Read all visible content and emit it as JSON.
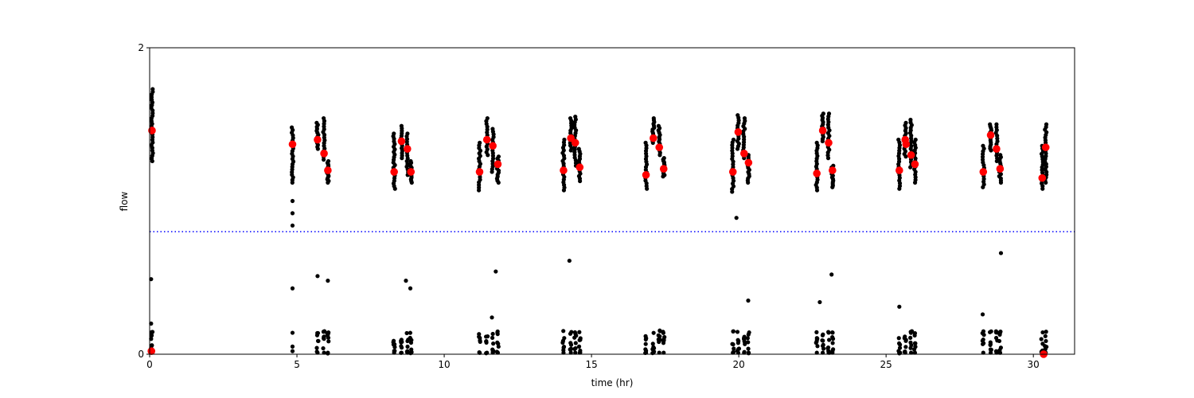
{
  "chart_data": {
    "type": "scatter",
    "xlabel": "time (hr)",
    "ylabel": "flow",
    "xlim": [
      0,
      31.4
    ],
    "ylim": [
      0,
      2
    ],
    "xticks": [
      0,
      5,
      10,
      15,
      20,
      25,
      30
    ],
    "yticks": [
      0,
      2
    ],
    "grid": false,
    "threshold_line": {
      "y": 0.8,
      "style": "dotted",
      "color": "#0000ff"
    },
    "colors": {
      "raw": "#000000",
      "mean": "#ff0000",
      "threshold": "#0000ff"
    },
    "series": [
      {
        "role": "raw",
        "marker": "dot",
        "clusters": [
          {
            "x": 0.08,
            "ymin": 1.26,
            "ymax": 1.73
          },
          {
            "x": 4.85,
            "ymin": 1.12,
            "ymax": 1.48
          },
          {
            "x": 5.7,
            "ymin": 1.34,
            "ymax": 1.51
          },
          {
            "x": 5.92,
            "ymin": 1.27,
            "ymax": 1.54
          },
          {
            "x": 6.05,
            "ymin": 1.12,
            "ymax": 1.26
          },
          {
            "x": 8.3,
            "ymin": 1.08,
            "ymax": 1.44
          },
          {
            "x": 8.55,
            "ymin": 1.28,
            "ymax": 1.49
          },
          {
            "x": 8.75,
            "ymin": 1.17,
            "ymax": 1.44
          },
          {
            "x": 8.87,
            "ymin": 1.12,
            "ymax": 1.26
          },
          {
            "x": 11.2,
            "ymin": 1.07,
            "ymax": 1.38
          },
          {
            "x": 11.45,
            "ymin": 1.3,
            "ymax": 1.54
          },
          {
            "x": 11.65,
            "ymin": 1.19,
            "ymax": 1.47
          },
          {
            "x": 11.82,
            "ymin": 1.12,
            "ymax": 1.29
          },
          {
            "x": 14.05,
            "ymin": 1.07,
            "ymax": 1.4
          },
          {
            "x": 14.3,
            "ymin": 1.33,
            "ymax": 1.54
          },
          {
            "x": 14.45,
            "ymin": 1.23,
            "ymax": 1.55
          },
          {
            "x": 14.6,
            "ymin": 1.13,
            "ymax": 1.34
          },
          {
            "x": 16.85,
            "ymin": 1.08,
            "ymax": 1.38
          },
          {
            "x": 17.1,
            "ymin": 1.38,
            "ymax": 1.54
          },
          {
            "x": 17.3,
            "ymin": 1.3,
            "ymax": 1.49
          },
          {
            "x": 17.45,
            "ymin": 1.16,
            "ymax": 1.28
          },
          {
            "x": 19.8,
            "ymin": 1.06,
            "ymax": 1.4
          },
          {
            "x": 19.98,
            "ymin": 1.34,
            "ymax": 1.56
          },
          {
            "x": 20.18,
            "ymin": 1.28,
            "ymax": 1.54
          },
          {
            "x": 20.33,
            "ymin": 1.12,
            "ymax": 1.3
          },
          {
            "x": 22.65,
            "ymin": 1.07,
            "ymax": 1.38
          },
          {
            "x": 22.85,
            "ymin": 1.39,
            "ymax": 1.57
          },
          {
            "x": 23.05,
            "ymin": 1.28,
            "ymax": 1.57
          },
          {
            "x": 23.18,
            "ymin": 1.09,
            "ymax": 1.23
          },
          {
            "x": 25.45,
            "ymin": 1.08,
            "ymax": 1.4
          },
          {
            "x": 25.65,
            "ymin": 1.29,
            "ymax": 1.51
          },
          {
            "x": 25.85,
            "ymin": 1.22,
            "ymax": 1.53
          },
          {
            "x": 25.98,
            "ymin": 1.12,
            "ymax": 1.4
          },
          {
            "x": 28.3,
            "ymin": 1.09,
            "ymax": 1.36
          },
          {
            "x": 28.55,
            "ymin": 1.33,
            "ymax": 1.5
          },
          {
            "x": 28.75,
            "ymin": 1.26,
            "ymax": 1.5
          },
          {
            "x": 28.87,
            "ymin": 1.12,
            "ymax": 1.3
          },
          {
            "x": 30.3,
            "ymin": 1.08,
            "ymax": 1.36
          },
          {
            "x": 30.42,
            "ymin": 1.12,
            "ymax": 1.5
          }
        ],
        "low_clusters_x": [
          0.08,
          5.7,
          5.92,
          6.05,
          8.3,
          8.55,
          8.75,
          8.87,
          11.2,
          11.45,
          11.65,
          11.82,
          14.05,
          14.3,
          14.45,
          14.6,
          16.85,
          17.1,
          17.3,
          17.45,
          19.8,
          19.98,
          20.18,
          20.33,
          22.65,
          22.85,
          23.05,
          23.18,
          25.45,
          25.65,
          25.85,
          25.98,
          28.3,
          28.55,
          28.75,
          28.87,
          30.3,
          30.42
        ],
        "outliers": [
          {
            "x": 0.05,
            "y": 0.49
          },
          {
            "x": 0.05,
            "y": 0.2
          },
          {
            "x": 0.05,
            "y": 0.1
          },
          {
            "x": 0.05,
            "y": 0.04
          },
          {
            "x": 4.85,
            "y": 1.0
          },
          {
            "x": 4.85,
            "y": 0.92
          },
          {
            "x": 4.85,
            "y": 0.84
          },
          {
            "x": 4.85,
            "y": 0.43
          },
          {
            "x": 4.85,
            "y": 0.14
          },
          {
            "x": 4.85,
            "y": 0.05
          },
          {
            "x": 4.85,
            "y": 0.02
          },
          {
            "x": 5.7,
            "y": 0.51
          },
          {
            "x": 6.05,
            "y": 0.48
          },
          {
            "x": 8.7,
            "y": 0.48
          },
          {
            "x": 8.85,
            "y": 0.43
          },
          {
            "x": 11.62,
            "y": 0.24
          },
          {
            "x": 11.75,
            "y": 0.54
          },
          {
            "x": 14.25,
            "y": 0.61
          },
          {
            "x": 19.92,
            "y": 0.89
          },
          {
            "x": 20.32,
            "y": 0.35
          },
          {
            "x": 22.75,
            "y": 0.34
          },
          {
            "x": 23.15,
            "y": 0.52
          },
          {
            "x": 25.45,
            "y": 0.31
          },
          {
            "x": 28.28,
            "y": 0.26
          },
          {
            "x": 28.9,
            "y": 0.66
          }
        ]
      },
      {
        "role": "mean",
        "marker": "circle",
        "points": [
          {
            "x": 0.08,
            "y": 1.46
          },
          {
            "x": 4.85,
            "y": 1.37
          },
          {
            "x": 5.7,
            "y": 1.4
          },
          {
            "x": 5.92,
            "y": 1.31
          },
          {
            "x": 6.05,
            "y": 1.2
          },
          {
            "x": 8.3,
            "y": 1.19
          },
          {
            "x": 8.55,
            "y": 1.39
          },
          {
            "x": 8.75,
            "y": 1.34
          },
          {
            "x": 8.87,
            "y": 1.19
          },
          {
            "x": 11.2,
            "y": 1.19
          },
          {
            "x": 11.45,
            "y": 1.4
          },
          {
            "x": 11.65,
            "y": 1.36
          },
          {
            "x": 11.82,
            "y": 1.24
          },
          {
            "x": 14.05,
            "y": 1.2
          },
          {
            "x": 14.3,
            "y": 1.41
          },
          {
            "x": 14.45,
            "y": 1.38
          },
          {
            "x": 14.6,
            "y": 1.22
          },
          {
            "x": 16.85,
            "y": 1.17
          },
          {
            "x": 17.1,
            "y": 1.41
          },
          {
            "x": 17.3,
            "y": 1.35
          },
          {
            "x": 17.45,
            "y": 1.21
          },
          {
            "x": 19.8,
            "y": 1.19
          },
          {
            "x": 19.98,
            "y": 1.45
          },
          {
            "x": 20.18,
            "y": 1.31
          },
          {
            "x": 20.33,
            "y": 1.25
          },
          {
            "x": 22.65,
            "y": 1.18
          },
          {
            "x": 22.85,
            "y": 1.46
          },
          {
            "x": 23.05,
            "y": 1.38
          },
          {
            "x": 23.18,
            "y": 1.2
          },
          {
            "x": 25.45,
            "y": 1.2
          },
          {
            "x": 25.65,
            "y": 1.4
          },
          {
            "x": 25.68,
            "y": 1.37
          },
          {
            "x": 25.85,
            "y": 1.3
          },
          {
            "x": 25.98,
            "y": 1.24
          },
          {
            "x": 28.3,
            "y": 1.19
          },
          {
            "x": 28.55,
            "y": 1.43
          },
          {
            "x": 28.75,
            "y": 1.34
          },
          {
            "x": 28.87,
            "y": 1.21
          },
          {
            "x": 30.3,
            "y": 1.15
          },
          {
            "x": 30.42,
            "y": 1.35
          },
          {
            "x": 0.06,
            "y": 0.02
          },
          {
            "x": 30.35,
            "y": 0.0
          }
        ]
      }
    ]
  }
}
